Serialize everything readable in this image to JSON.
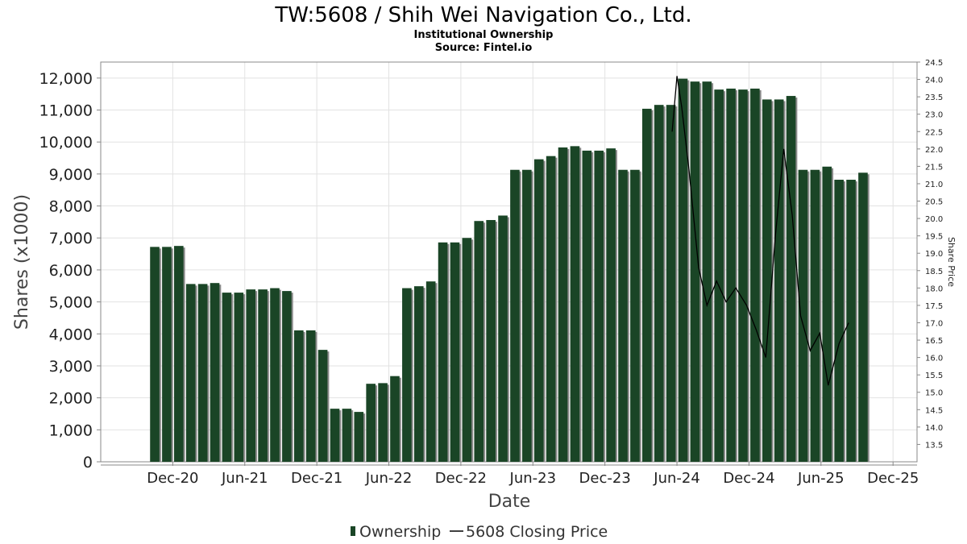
{
  "chart_data": {
    "type": "bar",
    "title": "TW:5608 / Shih Wei Navigation Co., Ltd.",
    "subtitle": "Institutional Ownership",
    "source": "Source: Fintel.io",
    "xlabel": "Date",
    "ylabel": "Shares (x1000)",
    "y2label": "Share Price",
    "ylim": [
      0,
      12500
    ],
    "y2lim": [
      13.0,
      24.5
    ],
    "y_ticks": [
      "0",
      "1,000",
      "2,000",
      "3,000",
      "4,000",
      "5,000",
      "6,000",
      "7,000",
      "8,000",
      "9,000",
      "10,000",
      "11,000",
      "12,000"
    ],
    "y2_ticks": [
      "13.5",
      "14.0",
      "14.5",
      "15.0",
      "15.5",
      "16.0",
      "16.5",
      "17.0",
      "17.5",
      "18.0",
      "18.5",
      "19.0",
      "19.5",
      "20.0",
      "20.5",
      "21.0",
      "21.5",
      "22.0",
      "22.5",
      "23.0",
      "23.5",
      "24.0",
      "24.5"
    ],
    "x_ticks": [
      "Dec-20",
      "Jun-21",
      "Dec-21",
      "Jun-22",
      "Dec-22",
      "Jun-23",
      "Dec-23",
      "Jun-24",
      "Dec-24",
      "Jun-25",
      "Dec-25"
    ],
    "x_tick_months": [
      0,
      6,
      12,
      18,
      24,
      30,
      36,
      42,
      48,
      54,
      60
    ],
    "xlim_months": [
      -6,
      62
    ],
    "grid": true,
    "legend_position": "bottom",
    "series": [
      {
        "name": "Ownership",
        "color": "#1a4526",
        "kind": "bar",
        "values": [
          6720,
          6720,
          6750,
          5560,
          5560,
          5590,
          5290,
          5290,
          5390,
          5390,
          5430,
          5340,
          4110,
          4110,
          3500,
          1660,
          1660,
          1560,
          2440,
          2460,
          2680,
          5430,
          5490,
          5640,
          6860,
          6860,
          7000,
          7530,
          7560,
          7700,
          9130,
          9130,
          9460,
          9560,
          9830,
          9870,
          9730,
          9730,
          9800,
          9130,
          9130,
          11040,
          11160,
          11160,
          11980,
          11890,
          11890,
          11640,
          11670,
          11640,
          11670,
          11330,
          11330,
          11440,
          9130,
          9130,
          9230,
          8820,
          8820,
          9040
        ]
      },
      {
        "name": "5608 Closing Price",
        "color": "#000000",
        "kind": "line",
        "x_months": [
          41.6,
          42.0,
          42.4,
          43.0,
          43.8,
          44.5,
          45.3,
          46.1,
          46.9,
          47.8,
          48.6,
          49.4,
          50.2,
          50.9,
          51.6,
          52.3,
          53.1,
          53.9,
          54.6,
          55.5,
          56.3
        ],
        "values": [
          22.5,
          24.1,
          23.2,
          21.4,
          18.6,
          17.5,
          18.2,
          17.6,
          18.0,
          17.5,
          16.8,
          16.0,
          19.5,
          22.0,
          20.1,
          17.2,
          16.2,
          16.7,
          15.2,
          16.4,
          17.0
        ]
      }
    ]
  }
}
